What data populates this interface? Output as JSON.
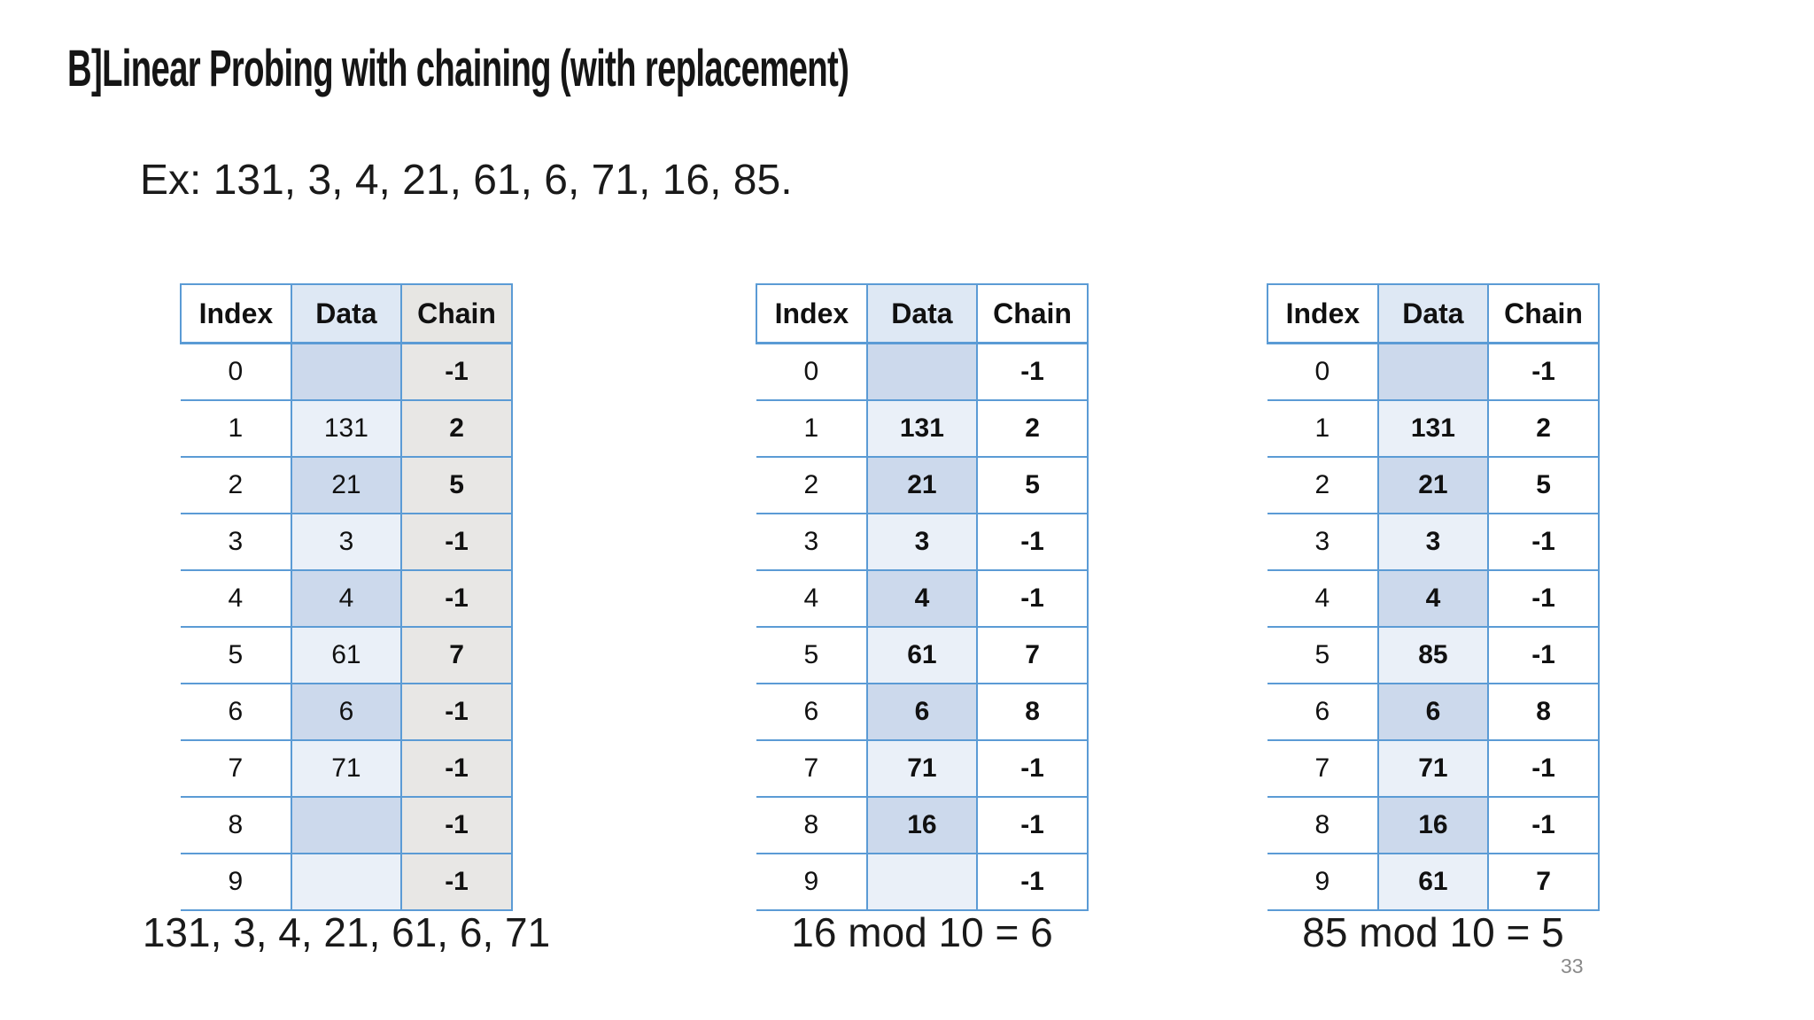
{
  "slide": {
    "title": "B]Linear Probing with chaining (with replacement)",
    "example_label": "Ex: 131, 3, 4, 21, 61, 6, 71, 16, 85.",
    "page_number": "33"
  },
  "columns": [
    "Index",
    "Data",
    "Chain"
  ],
  "tables": [
    {
      "caption": "131, 3, 4, 21, 61, 6, 71",
      "data_bold": false,
      "chain_shaded": true,
      "rows": [
        {
          "index": "0",
          "data": "",
          "chain": "-1"
        },
        {
          "index": "1",
          "data": "131",
          "chain": "2"
        },
        {
          "index": "2",
          "data": "21",
          "chain": "5"
        },
        {
          "index": "3",
          "data": "3",
          "chain": "-1"
        },
        {
          "index": "4",
          "data": "4",
          "chain": "-1"
        },
        {
          "index": "5",
          "data": "61",
          "chain": "7"
        },
        {
          "index": "6",
          "data": "6",
          "chain": "-1"
        },
        {
          "index": "7",
          "data": "71",
          "chain": "-1"
        },
        {
          "index": "8",
          "data": "",
          "chain": "-1"
        },
        {
          "index": "9",
          "data": "",
          "chain": "-1"
        }
      ]
    },
    {
      "caption": "16 mod 10 = 6",
      "data_bold": true,
      "chain_shaded": false,
      "rows": [
        {
          "index": "0",
          "data": "",
          "chain": "-1"
        },
        {
          "index": "1",
          "data": "131",
          "chain": "2"
        },
        {
          "index": "2",
          "data": "21",
          "chain": "5"
        },
        {
          "index": "3",
          "data": "3",
          "chain": "-1"
        },
        {
          "index": "4",
          "data": "4",
          "chain": "-1"
        },
        {
          "index": "5",
          "data": "61",
          "chain": "7"
        },
        {
          "index": "6",
          "data": "6",
          "chain": "8"
        },
        {
          "index": "7",
          "data": "71",
          "chain": "-1"
        },
        {
          "index": "8",
          "data": "16",
          "chain": "-1"
        },
        {
          "index": "9",
          "data": "",
          "chain": "-1"
        }
      ]
    },
    {
      "caption": "85 mod 10 = 5",
      "data_bold": true,
      "chain_shaded": false,
      "rows": [
        {
          "index": "0",
          "data": "",
          "chain": "-1"
        },
        {
          "index": "1",
          "data": "131",
          "chain": "2"
        },
        {
          "index": "2",
          "data": "21",
          "chain": "5"
        },
        {
          "index": "3",
          "data": "3",
          "chain": "-1"
        },
        {
          "index": "4",
          "data": "4",
          "chain": "-1"
        },
        {
          "index": "5",
          "data": "85",
          "chain": "-1"
        },
        {
          "index": "6",
          "data": "6",
          "chain": "8"
        },
        {
          "index": "7",
          "data": "71",
          "chain": "-1"
        },
        {
          "index": "8",
          "data": "16",
          "chain": "-1"
        },
        {
          "index": "9",
          "data": "61",
          "chain": "7"
        }
      ]
    }
  ],
  "colors": {
    "table_border": "#5b9bd5",
    "chain_text": "#ff0000",
    "data_cell_even": "#ccd9ec",
    "data_cell_odd": "#eaf0f8",
    "data_header": "#dee8f4",
    "chain_shade": "#e8e7e5",
    "chain_header_shade": "#e7e6e3",
    "page_number_gray": "#8a8a8a"
  }
}
